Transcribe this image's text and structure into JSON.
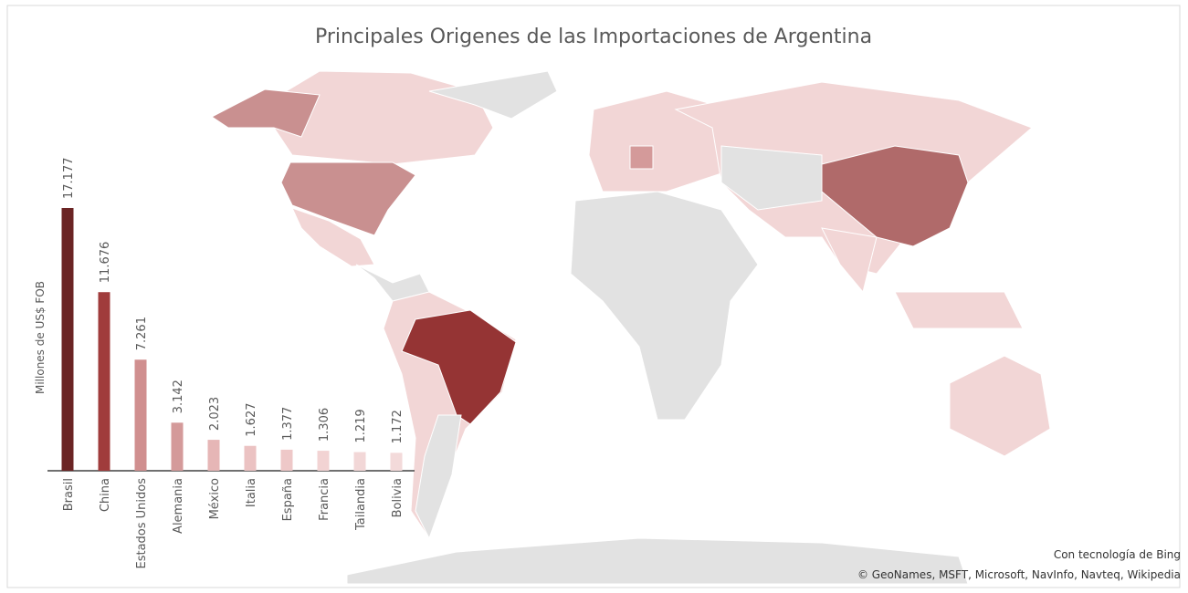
{
  "chart_data": {
    "type": "bar",
    "title": "Principales Origenes de las Importaciones de Argentina",
    "y_label": "Millones de US$ FOB",
    "categories": [
      "Brasil",
      "China",
      "Estados Unidos",
      "Alemania",
      "México",
      "Italia",
      "España",
      "Francia",
      "Tailandia",
      "Bolivia"
    ],
    "values": [
      17177,
      11676,
      7261,
      3142,
      2023,
      1627,
      1377,
      1306,
      1219,
      1172
    ],
    "value_labels": [
      "17.177",
      "11.676",
      "7.261",
      "3.142",
      "2.023",
      "1.627",
      "1.377",
      "1.306",
      "1.219",
      "1.172"
    ],
    "colors": [
      "#6b2424",
      "#a03c3c",
      "#d08f8f",
      "#d49a9a",
      "#e6b6b6",
      "#ebc2c2",
      "#eec8c8",
      "#f2d3d3",
      "#f2d7d7",
      "#f3dada"
    ],
    "credits": [
      "Con tecnología de Bing",
      "© GeoNames, MSFT, Microsoft, NavInfo, Navteq, Wikipedia"
    ]
  }
}
